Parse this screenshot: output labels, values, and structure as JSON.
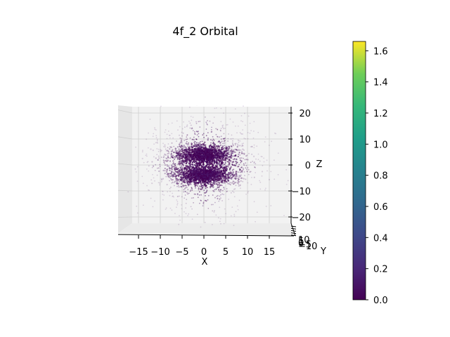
{
  "chart_data": {
    "type": "scatter",
    "title": "4f_2 Orbital",
    "xlabel": "X",
    "ylabel": "Y",
    "zlabel": "Z",
    "xlim": [
      -20,
      20
    ],
    "ylim": [
      -10,
      10
    ],
    "zlim": [
      -25,
      25
    ],
    "x_ticks": [
      "−15",
      "−10",
      "−5",
      "0",
      "5",
      "10",
      "15"
    ],
    "x_tick_values": [
      -15,
      -10,
      -5,
      0,
      5,
      10,
      15
    ],
    "z_ticks": [
      "20",
      "10",
      "0",
      "−10",
      "−20"
    ],
    "z_tick_values": [
      20,
      10,
      0,
      -10,
      -20
    ],
    "y_ticks": [
      "10",
      "5",
      "0",
      "−5",
      "−10"
    ],
    "y_tick_values": [
      10,
      5,
      0,
      -5,
      -10
    ],
    "grid": true,
    "colormap": "viridis",
    "colorbar": {
      "min": 0.0,
      "max": 1.66,
      "ticks": [
        "0.0",
        "0.2",
        "0.4",
        "0.6",
        "0.8",
        "1.0",
        "1.2",
        "1.4",
        "1.6"
      ],
      "tick_values": [
        0.0,
        0.2,
        0.4,
        0.6,
        0.8,
        1.0,
        1.2,
        1.4,
        1.6
      ]
    },
    "point_distribution": {
      "lobes": [
        {
          "x_center": 0,
          "z_center": 4,
          "x_spread": 3.5,
          "z_spread": 1.8,
          "count": 1400
        },
        {
          "x_center": 0,
          "z_center": -4,
          "x_spread": 3.5,
          "z_spread": 1.8,
          "count": 1400
        },
        {
          "x_center": 0,
          "z_center": 0,
          "x_spread": 6.5,
          "z_spread": 9.0,
          "count": 1100
        }
      ]
    },
    "colors": {
      "point_dark": "#440154",
      "pane": "#f2f2f2",
      "grid": "#cfcfcf"
    }
  }
}
